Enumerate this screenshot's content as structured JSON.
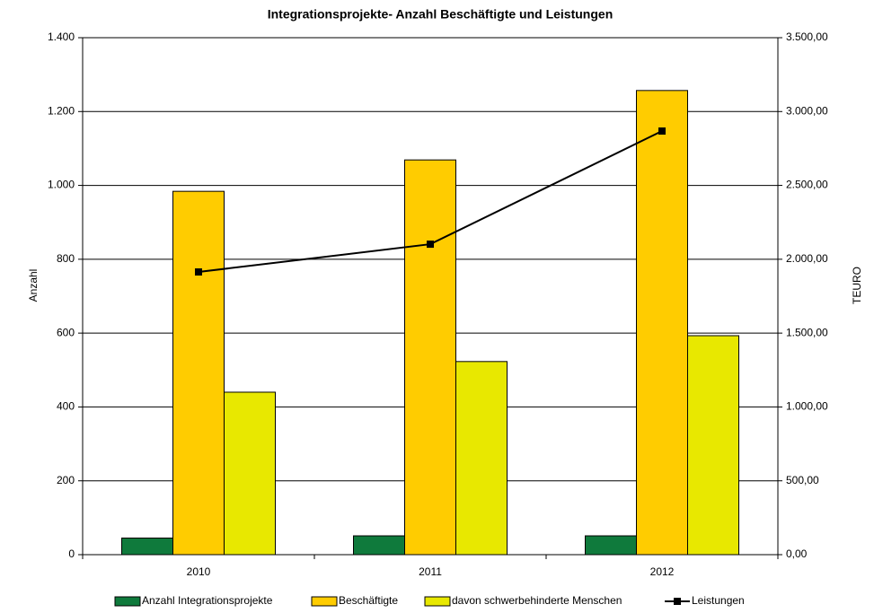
{
  "chart_data": {
    "type": "bar",
    "title": "Integrationsprojekte- Anzahl Beschäftigte und Leistungen",
    "y_label": "Anzahl",
    "y2_label": "TEURO",
    "categories": [
      "2010",
      "2011",
      "2012"
    ],
    "series": [
      {
        "name": "Anzahl Integrationsprojekte",
        "color": "#0f7a3c",
        "values": [
          45,
          51,
          51
        ]
      },
      {
        "name": "Beschäftigte",
        "color": "#ffcc00",
        "values": [
          984,
          1069,
          1257
        ]
      },
      {
        "name": "davon schwerbehinderte Menschen",
        "color": "#e8e800",
        "values": [
          440,
          523,
          593
        ]
      },
      {
        "name": "Leistungen",
        "color": "#000000",
        "type": "line",
        "axis": "y2",
        "values": [
          1914,
          2102,
          2868
        ]
      }
    ],
    "ylim": [
      0,
      1400
    ],
    "yticks": [
      0,
      {
        "value": 200,
        "label": "200"
      },
      {
        "value": 400,
        "label": "400"
      },
      {
        "value": 600,
        "label": "600"
      },
      {
        "value": 800,
        "label": "800"
      },
      {
        "value": 1000,
        "label": "1.000"
      },
      {
        "value": 1200,
        "label": "1.200"
      },
      {
        "value": 1400,
        "label": "1.400"
      }
    ],
    "y2lim": [
      0,
      3500
    ],
    "y2ticks": [
      {
        "value": 0,
        "label": "0,00"
      },
      {
        "value": 500,
        "label": "500,00"
      },
      {
        "value": 1000,
        "label": "1.000,00"
      },
      {
        "value": 1500,
        "label": "1.500,00"
      },
      {
        "value": 2000,
        "label": "2.000,00"
      },
      {
        "value": 2500,
        "label": "2.500,00"
      },
      {
        "value": 3000,
        "label": "3.000,00"
      },
      {
        "value": 3500,
        "label": "3.500,00"
      }
    ],
    "grid": true
  }
}
